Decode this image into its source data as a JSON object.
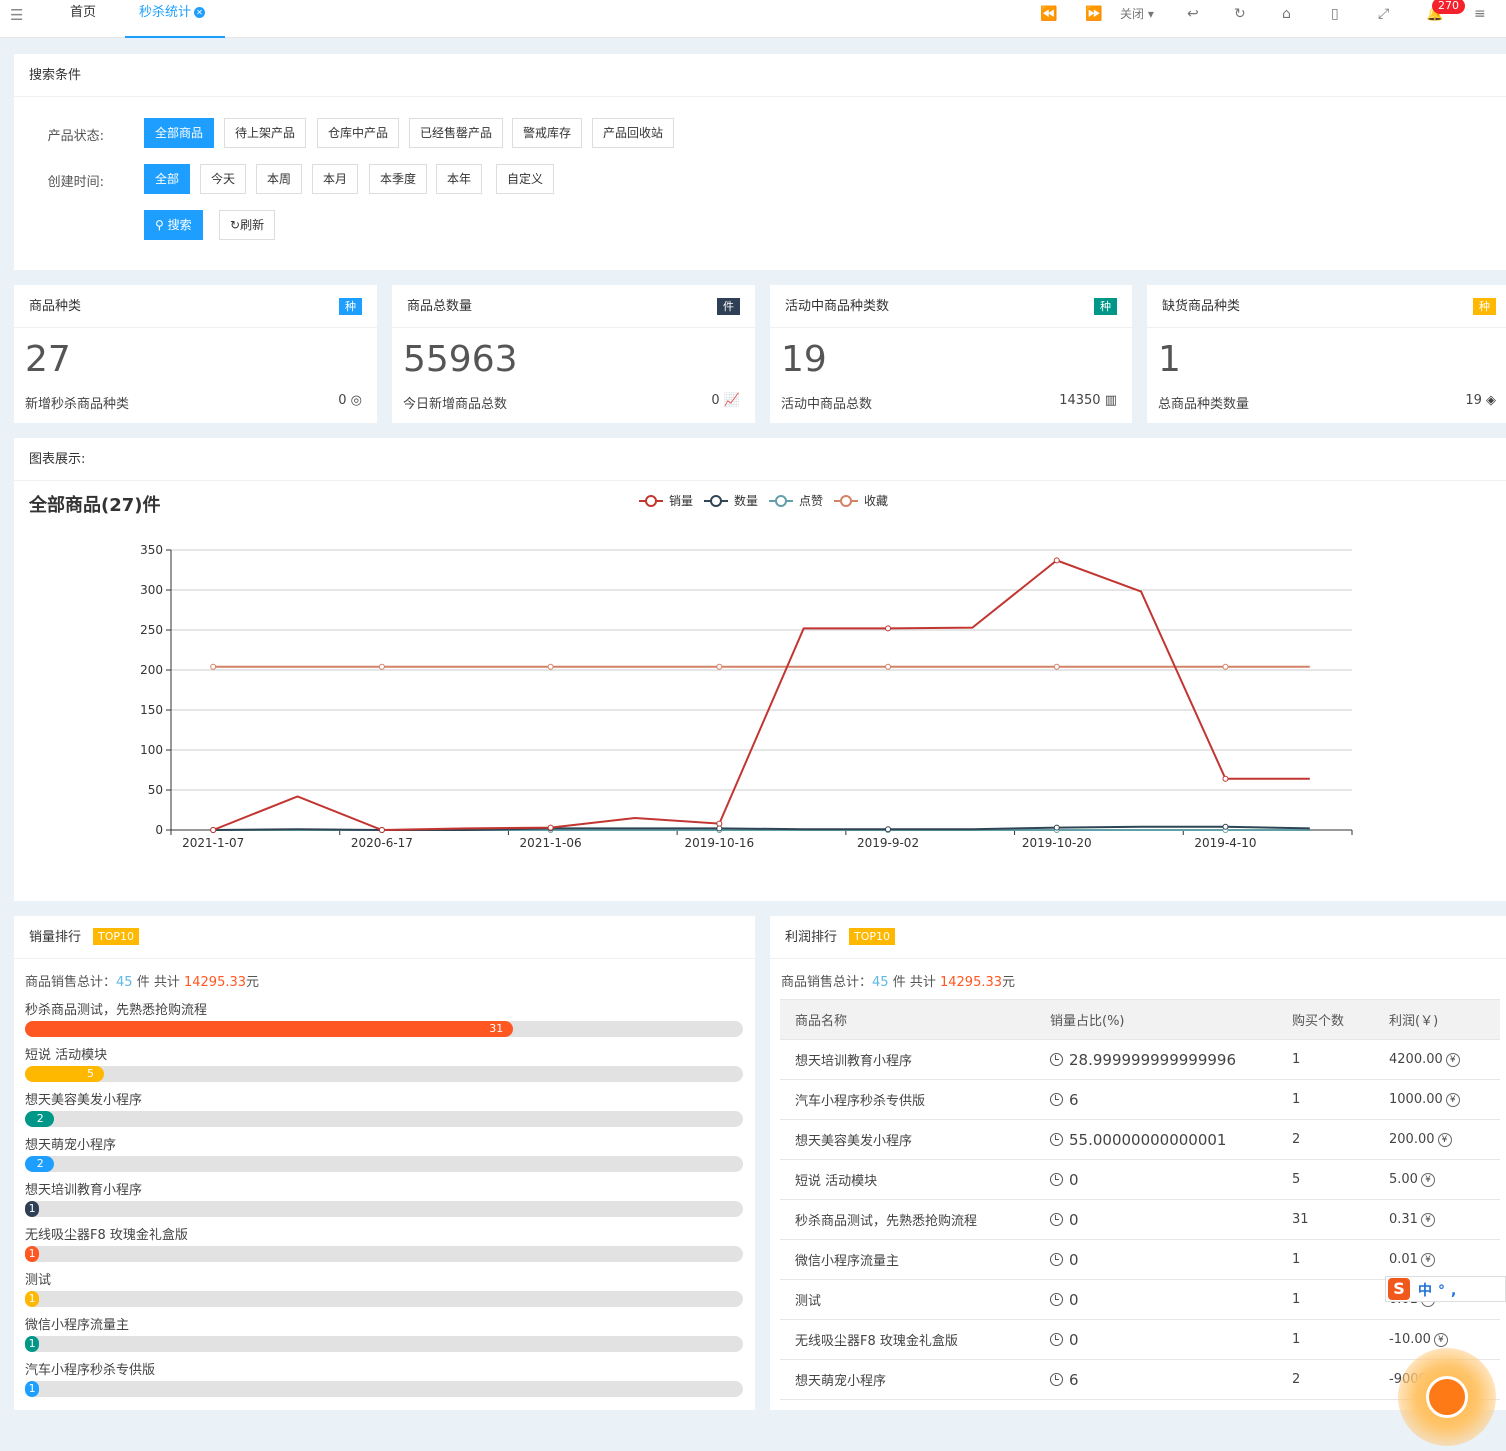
{
  "topbar": {
    "tabs": [
      "首页",
      "秒杀统计"
    ],
    "close_label": "关闭",
    "notification_count": "270"
  },
  "search": {
    "title": "搜索条件",
    "status_label": "产品状态:",
    "status_options": [
      "全部商品",
      "待上架产品",
      "仓库中产品",
      "已经售罄产品",
      "警戒库存",
      "产品回收站"
    ],
    "time_label": "创建时间:",
    "time_options": [
      "全部",
      "今天",
      "本周",
      "本月",
      "本季度",
      "本年",
      "自定义"
    ],
    "search_btn": "搜索",
    "refresh_btn": "刷新"
  },
  "stats": [
    {
      "title": "商品种类",
      "badge": "种",
      "badge_color": "#1e9fff",
      "value": "27",
      "sub": "新增秒杀商品种类",
      "right": "0"
    },
    {
      "title": "商品总数量",
      "badge": "件",
      "badge_color": "#2f4056",
      "value": "55963",
      "sub": "今日新增商品总数",
      "right": "0"
    },
    {
      "title": "活动中商品种类数",
      "badge": "种",
      "badge_color": "#009688",
      "value": "19",
      "sub": "活动中商品总数",
      "right": "14350"
    },
    {
      "title": "缺货商品种类",
      "badge": "种",
      "badge_color": "#ffb800",
      "value": "1",
      "sub": "总商品种类数量",
      "right": "19"
    }
  ],
  "chart_section": {
    "head": "图表展示:",
    "title": "全部商品(27)件"
  },
  "chart_data": {
    "type": "line",
    "title": "全部商品(27)件",
    "x": [
      "2021-1-07",
      "",
      "2020-6-17",
      "",
      "2021-1-06",
      "",
      "2019-10-16",
      "",
      "2019-9-02",
      "",
      "2019-10-20",
      "",
      "2019-4-10",
      ""
    ],
    "ylim": [
      0,
      350
    ],
    "yticks": [
      0,
      50,
      100,
      150,
      200,
      250,
      300,
      350
    ],
    "legend_position": "top-center",
    "series": [
      {
        "name": "销量",
        "color": "#c23531",
        "values": [
          0,
          42,
          0,
          2,
          3,
          15,
          8,
          252,
          252,
          253,
          337,
          298,
          64,
          64
        ]
      },
      {
        "name": "数量",
        "color": "#2f4554",
        "values": [
          0,
          1,
          0,
          0,
          2,
          2,
          2,
          1,
          1,
          1,
          3,
          4,
          4,
          2
        ]
      },
      {
        "name": "点赞",
        "color": "#61a0a8",
        "values": [
          0,
          0,
          0,
          0,
          0,
          0,
          0,
          0,
          0,
          0,
          0,
          0,
          0,
          0
        ]
      },
      {
        "name": "收藏",
        "color": "#d48265",
        "values": [
          204,
          204,
          204,
          204,
          204,
          204,
          204,
          204,
          204,
          204,
          204,
          204,
          204,
          204
        ]
      }
    ]
  },
  "sales_rank": {
    "title": "销量排行",
    "tag": "TOP10",
    "summary_prefix": "商品销售总计：",
    "count": "45",
    "mid": "件 共计",
    "amount": "14295.33",
    "suffix": "元",
    "items": [
      {
        "name": "秒杀商品测试，先熟悉抢购流程",
        "value": "31",
        "fraction": 0.68,
        "color": "#ff5722"
      },
      {
        "name": "短说 活动模块",
        "value": "5",
        "fraction": 0.11,
        "color": "#ffb800"
      },
      {
        "name": "想天美容美发小程序",
        "value": "2",
        "fraction": 0.04,
        "color": "#009688"
      },
      {
        "name": "想天萌宠小程序",
        "value": "2",
        "fraction": 0.04,
        "color": "#1e9fff"
      },
      {
        "name": "想天培训教育小程序",
        "value": "1",
        "fraction": 0.02,
        "color": "#2f4056"
      },
      {
        "name": "无线吸尘器F8 玫瑰金礼盒版",
        "value": "1",
        "fraction": 0.02,
        "color": "#ff5722"
      },
      {
        "name": "测试",
        "value": "1",
        "fraction": 0.02,
        "color": "#ffb800"
      },
      {
        "name": "微信小程序流量主",
        "value": "1",
        "fraction": 0.02,
        "color": "#009688"
      },
      {
        "name": "汽车小程序秒杀专供版",
        "value": "1",
        "fraction": 0.02,
        "color": "#1e9fff"
      }
    ]
  },
  "profit_rank": {
    "title": "利润排行",
    "tag": "TOP10",
    "summary_prefix": "商品销售总计：",
    "count": "45",
    "mid": "件 共计",
    "amount": "14295.33",
    "suffix": "元",
    "columns": [
      "商品名称",
      "销量占比(%)",
      "购买个数",
      "利润(￥)"
    ],
    "rows": [
      [
        "想天培训教育小程序",
        "28.999999999999996",
        "1",
        "4200.00"
      ],
      [
        "汽车小程序秒杀专供版",
        "6",
        "1",
        "1000.00"
      ],
      [
        "想天美容美发小程序",
        "55.00000000000001",
        "2",
        "200.00"
      ],
      [
        "短说 活动模块",
        "0",
        "5",
        "5.00"
      ],
      [
        "秒杀商品测试，先熟悉抢购流程",
        "0",
        "31",
        "0.31"
      ],
      [
        "微信小程序流量主",
        "0",
        "1",
        "0.01"
      ],
      [
        "测试",
        "0",
        "1",
        "0.01"
      ],
      [
        "无线吸尘器F8 玫瑰金礼盒版",
        "0",
        "1",
        "-10.00"
      ],
      [
        "想天萌宠小程序",
        "6",
        "2",
        "-9000.00"
      ]
    ]
  },
  "ime": {
    "text": "中°,"
  }
}
